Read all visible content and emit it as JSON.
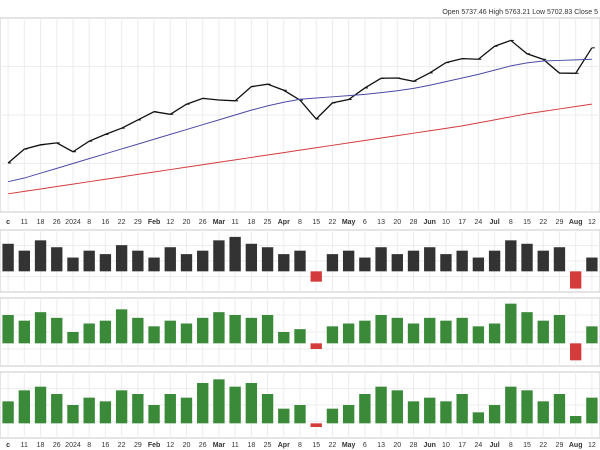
{
  "chart_data": [
    {
      "type": "line",
      "header": "Open 5737.46 High 5763.21 Low 5702.83 Close 5",
      "categories": [
        "c",
        "11",
        "18",
        "26",
        "2024",
        "8",
        "16",
        "22",
        "29",
        "Feb",
        "12",
        "20",
        "26",
        "Mar",
        "11",
        "18",
        "25",
        "Apr",
        "8",
        "15",
        "22",
        "May",
        "6",
        "13",
        "20",
        "28",
        "Jun",
        "10",
        "17",
        "24",
        "Jul",
        "8",
        "15",
        "22",
        "29",
        "Aug",
        "12"
      ],
      "ylim": [
        4200,
        5800
      ],
      "series": [
        {
          "color": "#111111",
          "values": [
            4604,
            4719,
            4754,
            4770,
            4697,
            4784,
            4840,
            4891,
            4959,
            5027,
            5006,
            5089,
            5137,
            5124,
            5117,
            5234,
            5254,
            5204,
            5123,
            4967,
            5100,
            5128,
            5223,
            5303,
            5305,
            5278,
            5347,
            5432,
            5465,
            5460,
            5567,
            5615,
            5505,
            5459,
            5346,
            5344,
            5554
          ]
        },
        {
          "color": "#4b4ba6",
          "values": [
            4450,
            4480,
            4520,
            4560,
            4600,
            4640,
            4680,
            4720,
            4760,
            4800,
            4840,
            4880,
            4920,
            4960,
            5000,
            5040,
            5075,
            5105,
            5130,
            5140,
            5150,
            5160,
            5170,
            5185,
            5200,
            5220,
            5245,
            5275,
            5305,
            5335,
            5370,
            5405,
            5430,
            5445,
            5450,
            5455,
            5460
          ]
        },
        {
          "color": "#d43c3c",
          "values": [
            4350,
            4370,
            4390,
            4410,
            4430,
            4450,
            4470,
            4490,
            4510,
            4530,
            4550,
            4570,
            4590,
            4610,
            4630,
            4650,
            4670,
            4690,
            4710,
            4730,
            4750,
            4770,
            4790,
            4810,
            4830,
            4850,
            4870,
            4890,
            4910,
            4935,
            4960,
            4985,
            5010,
            5030,
            5050,
            5070,
            5090
          ]
        }
      ]
    },
    {
      "type": "bar",
      "color": "#333333",
      "negative_color": "#d43c3c",
      "ylim": [
        -30,
        60
      ],
      "values": [
        40,
        30,
        45,
        35,
        20,
        30,
        25,
        38,
        30,
        20,
        35,
        25,
        30,
        45,
        50,
        40,
        35,
        25,
        30,
        -15,
        25,
        30,
        20,
        35,
        25,
        30,
        35,
        25,
        30,
        20,
        30,
        45,
        40,
        30,
        35,
        -25,
        20
      ]
    },
    {
      "type": "bar",
      "color": "#3a8a3a",
      "negative_color": "#d43c3c",
      "ylim": [
        -40,
        80
      ],
      "values": [
        50,
        40,
        55,
        45,
        20,
        35,
        40,
        60,
        45,
        30,
        40,
        35,
        45,
        55,
        50,
        45,
        50,
        20,
        25,
        -10,
        30,
        35,
        40,
        50,
        45,
        35,
        45,
        40,
        45,
        30,
        35,
        70,
        55,
        40,
        50,
        -30,
        30
      ]
    },
    {
      "type": "bar",
      "color": "#3a8a3a",
      "negative_color": "#d43c3c",
      "ylim": [
        -20,
        70
      ],
      "values": [
        30,
        45,
        50,
        40,
        25,
        35,
        30,
        45,
        40,
        25,
        40,
        35,
        55,
        60,
        50,
        55,
        40,
        20,
        25,
        -5,
        20,
        25,
        40,
        50,
        45,
        30,
        35,
        30,
        40,
        15,
        25,
        50,
        45,
        30,
        40,
        10,
        35
      ]
    }
  ]
}
